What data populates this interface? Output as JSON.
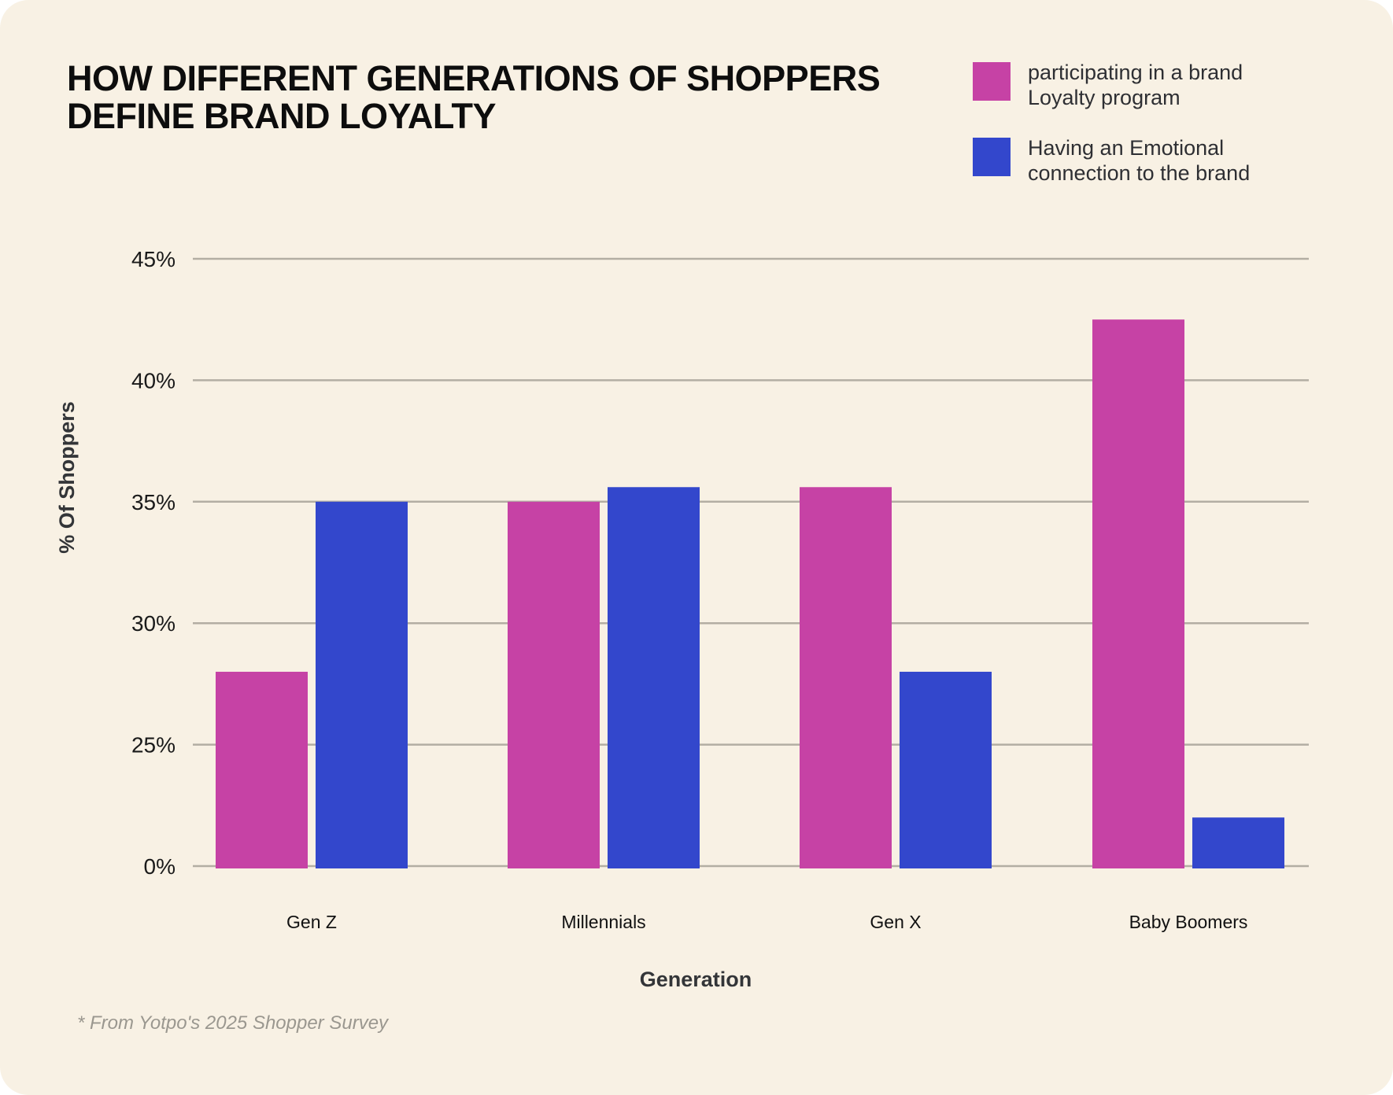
{
  "title": "HOW DIFFERENT GENERATIONS OF SHOPPERS DEFINE BRAND LOYALTY",
  "footnote": "* From Yotpo's 2025 Shopper Survey",
  "colors": {
    "background": "#f8f1e4",
    "series_loyalty": "#c642a5",
    "series_emotional": "#3347cc",
    "gridline": "#b3aea3"
  },
  "chart_data": {
    "type": "bar",
    "title": "HOW DIFFERENT GENERATIONS OF SHOPPERS DEFINE BRAND LOYALTY",
    "xlabel": "Generation",
    "ylabel": "% Of Shoppers",
    "categories": [
      "Gen Z",
      "Millennials",
      "Gen X",
      "Baby Boomers"
    ],
    "series": [
      {
        "name": "participating in a brand Loyalty program",
        "color": "#c642a5",
        "values": [
          28,
          35,
          35.6,
          42.5
        ]
      },
      {
        "name": "Having an Emotional connection to the brand",
        "color": "#3347cc",
        "values": [
          35,
          35.6,
          28,
          10
        ]
      }
    ],
    "yticks": [
      0,
      25,
      30,
      35,
      40,
      45
    ],
    "ytick_labels": [
      "0%",
      "25%",
      "30%",
      "35%",
      "40%",
      "45%"
    ],
    "ylim": [
      0,
      45
    ],
    "grid": true,
    "legend_position": "top-right"
  }
}
